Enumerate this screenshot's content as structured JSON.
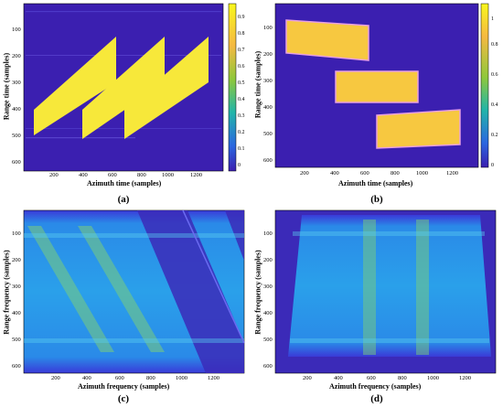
{
  "panels": [
    {
      "id": "a",
      "caption": "(a)",
      "xlabel": "Azimuth time (samples)",
      "ylabel": "Range time (samples)",
      "xticks": [
        "200",
        "400",
        "600",
        "800",
        "1000",
        "1200"
      ],
      "yticks": [
        "100",
        "200",
        "300",
        "400",
        "500",
        "600"
      ],
      "colorbar_ticks": [
        "0.9",
        "0.8",
        "0.7",
        "0.6",
        "0.5",
        "0.4",
        "0.3",
        "0.2",
        "0.1",
        "0"
      ]
    },
    {
      "id": "b",
      "caption": "(b)",
      "xlabel": "Azimuth time (samples)",
      "ylabel": "Range time (samples)",
      "xticks": [
        "200",
        "400",
        "600",
        "800",
        "1000",
        "1200"
      ],
      "yticks": [
        "100",
        "200",
        "300",
        "400",
        "500",
        "600"
      ],
      "colorbar_ticks": [
        "1",
        "0.8",
        "0.6",
        "0.4",
        "0.2",
        "0"
      ]
    },
    {
      "id": "c",
      "caption": "(c)",
      "xlabel": "Azimuth frequency (samples)",
      "ylabel": "Range frequency (samples)",
      "xticks": [
        "200",
        "400",
        "600",
        "800",
        "1000",
        "1200"
      ],
      "yticks": [
        "100",
        "200",
        "300",
        "400",
        "500",
        "600"
      ]
    },
    {
      "id": "d",
      "caption": "(d)",
      "xlabel": "Azimuth frequency (samples)",
      "ylabel": "Range frequency (samples)",
      "xticks": [
        "200",
        "400",
        "600",
        "800",
        "1000",
        "1200"
      ],
      "yticks": [
        "100",
        "200",
        "300",
        "400",
        "500",
        "600"
      ]
    }
  ],
  "colors": {
    "background": "#3b1fb0",
    "target": "#f7e83a",
    "target_b": "#f7c840",
    "spectrum": "#2a9be8"
  }
}
